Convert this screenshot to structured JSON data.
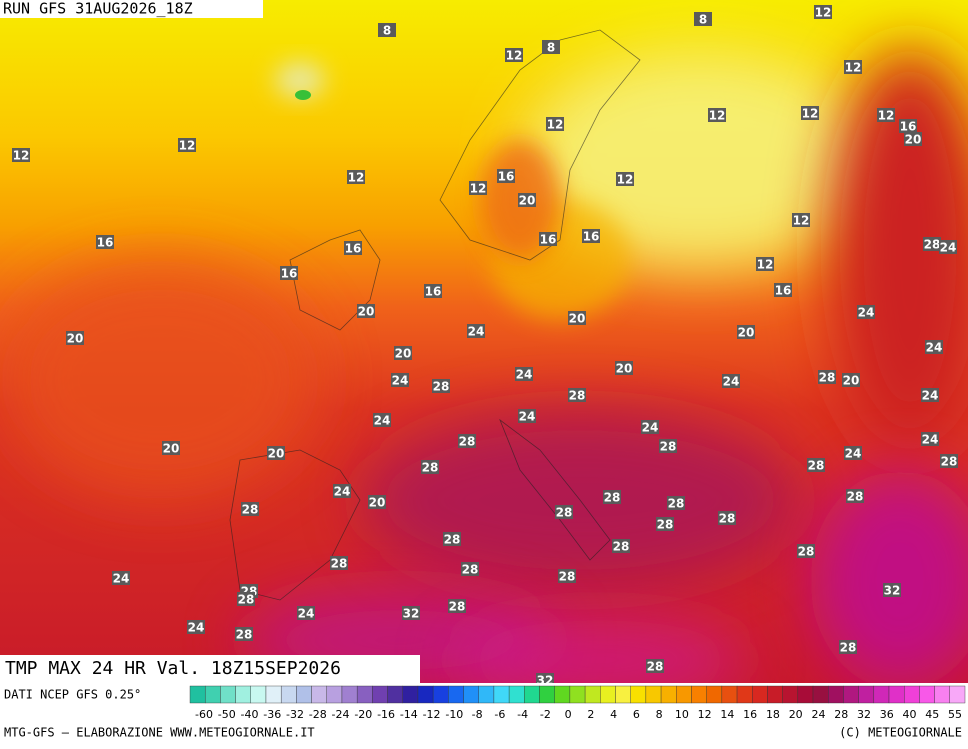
{
  "header": {
    "run": "RUN GFS 31AUG2026_18Z"
  },
  "map": {
    "labels": [
      8,
      8,
      8,
      12,
      12,
      12,
      12,
      12,
      12,
      16,
      20,
      12,
      12,
      12,
      12,
      12,
      16,
      12,
      20,
      12,
      16,
      16,
      16,
      16,
      28,
      24,
      12,
      16,
      16,
      16,
      20,
      20,
      24,
      24,
      20,
      20,
      20,
      24,
      20,
      24,
      24,
      28,
      24,
      28,
      20,
      28,
      24,
      24,
      24,
      24,
      28,
      28,
      24,
      20,
      20,
      24,
      28,
      28,
      28,
      24,
      20,
      28,
      28,
      28,
      28,
      28,
      28,
      28,
      28,
      28,
      28,
      28,
      28,
      28,
      24,
      32,
      28,
      28,
      24,
      32,
      28,
      24,
      28,
      28,
      28,
      32
    ]
  },
  "footer": {
    "title": "TMP MAX 24 HR Val. 18Z15SEP2026",
    "source": "DATI NCEP GFS 0.25°",
    "colorbar": {
      "labels": [
        -60,
        -50,
        -40,
        -36,
        -32,
        -28,
        -24,
        -20,
        -16,
        -14,
        -12,
        -10,
        -8,
        -6,
        -4,
        -2,
        0,
        2,
        4,
        6,
        8,
        10,
        12,
        14,
        16,
        18,
        20,
        24,
        28,
        32,
        36,
        40,
        45,
        55
      ]
    },
    "credit": "MTG-GFS — ELABORAZIONE WWW.METEOGIORNALE.IT",
    "copyright": "(C) METEOGIORNALE"
  }
}
